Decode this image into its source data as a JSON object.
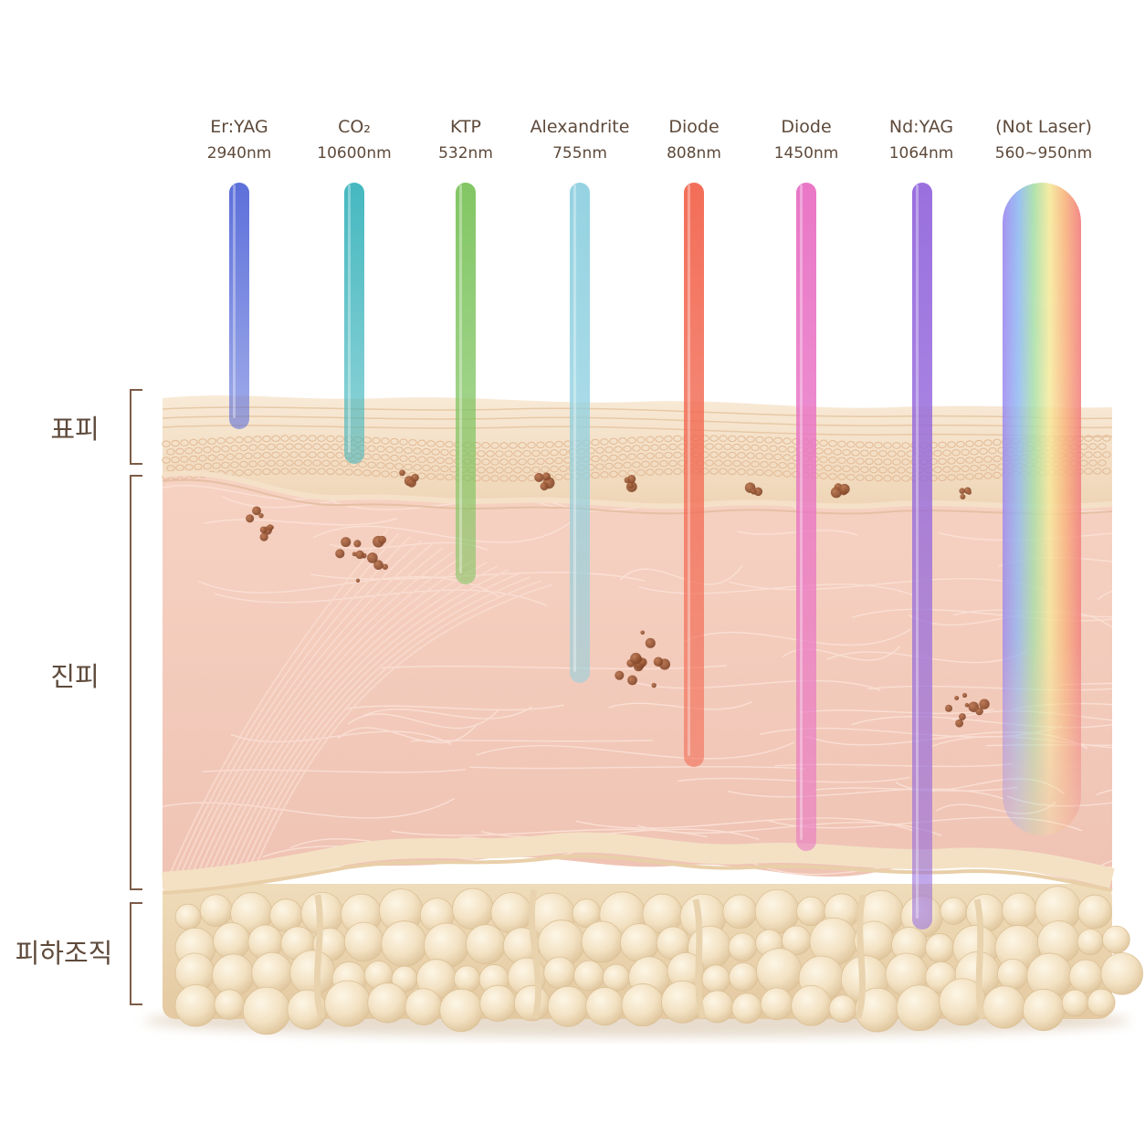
{
  "lasers": [
    {
      "name": "Er:YAG",
      "wavelength": "2940nm",
      "color": "#5468d8",
      "depth_layer": "표피"
    },
    {
      "name": "CO₂",
      "wavelength": "10600nm",
      "color": "#3cb4bc",
      "depth_layer": "표피"
    },
    {
      "name": "KTP",
      "wavelength": "532nm",
      "color": "#7cc35c",
      "depth_layer": "진피"
    },
    {
      "name": "Alexandrite",
      "wavelength": "755nm",
      "color": "#8fd0e0",
      "depth_layer": "진피"
    },
    {
      "name": "Diode",
      "wavelength": "808nm",
      "color": "#f2664f",
      "depth_layer": "진피"
    },
    {
      "name": "Diode",
      "wavelength": "1450nm",
      "color": "#e870c4",
      "depth_layer": "진피"
    },
    {
      "name": "Nd:YAG",
      "wavelength": "1064nm",
      "color": "#9468dc",
      "depth_layer": "피하조직"
    },
    {
      "name": "(Not Laser)",
      "wavelength": "560~950nm",
      "color": "rainbow",
      "depth_layer": "진피"
    }
  ],
  "layers": {
    "epidermis": "표피",
    "dermis": "진피",
    "subcutis": "피하조직"
  },
  "colors": {
    "label_text": "#5e4a3b",
    "bracket": "#7d5c48",
    "epidermis": "#f1dcbf",
    "dermis": "#f3cdbd",
    "fat": "#f2e2c2",
    "pigment": "#9a5634"
  }
}
